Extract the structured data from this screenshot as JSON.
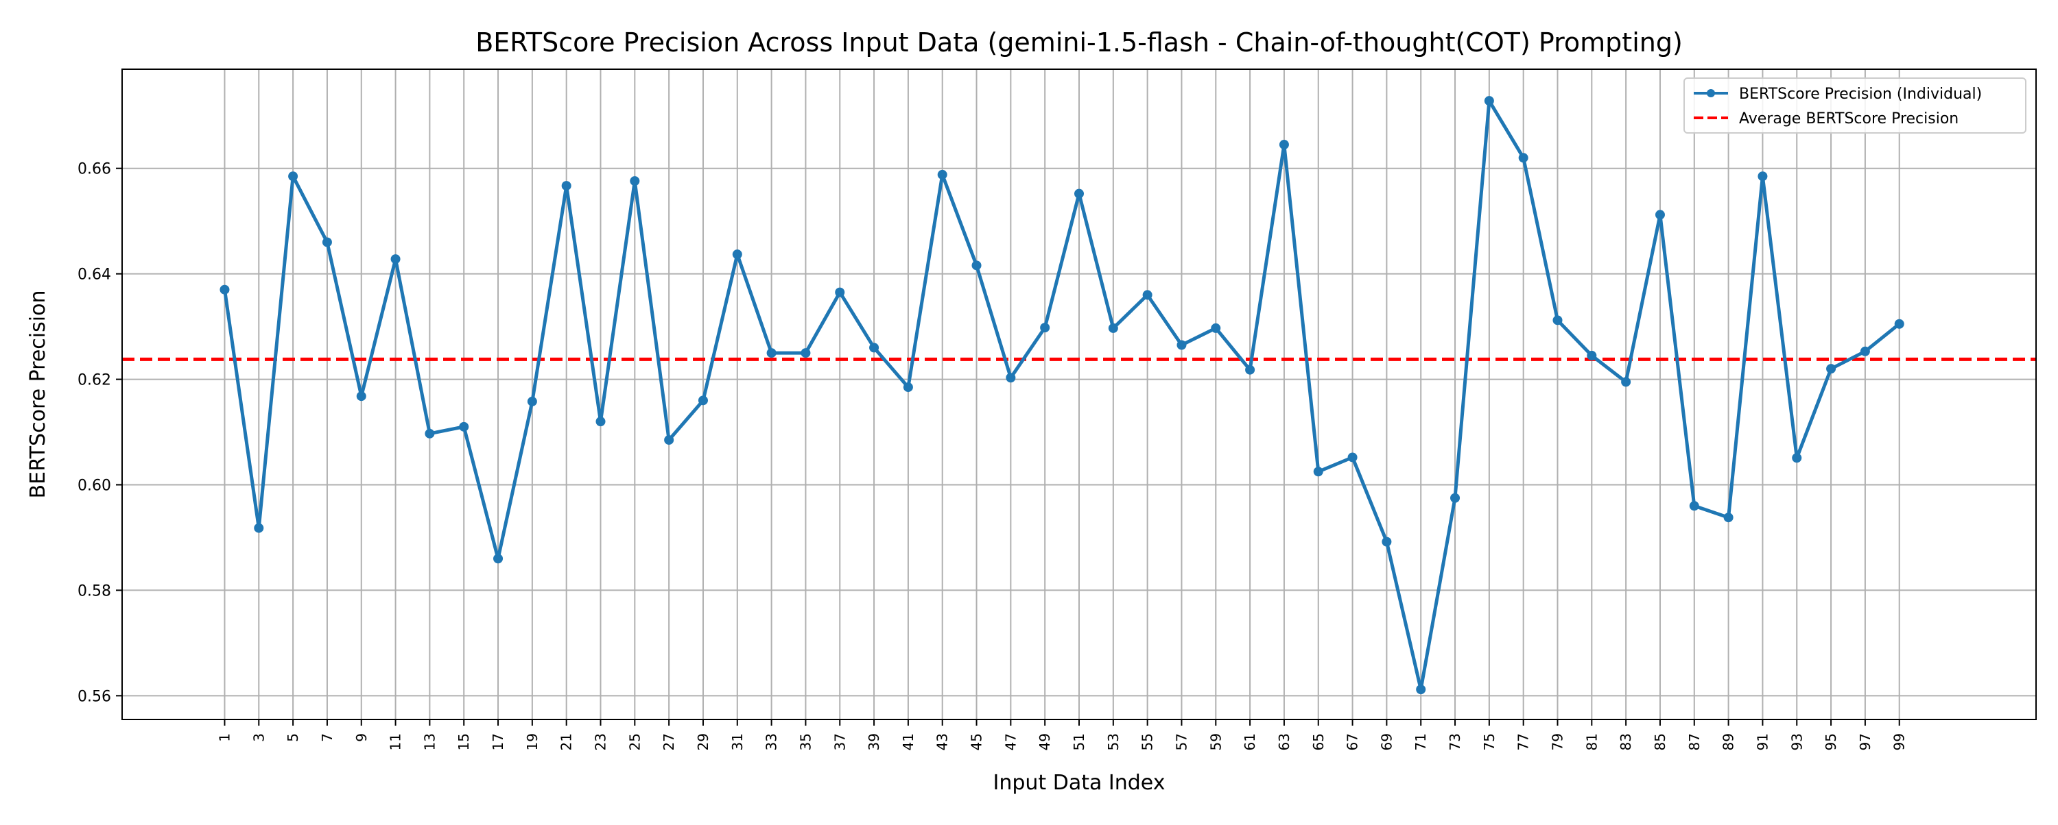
{
  "chart_data": {
    "type": "line",
    "title": "BERTScore Precision Across Input Data (gemini-1.5-flash - Chain-of-thought(COT) Prompting)",
    "xlabel": "Input Data Index",
    "ylabel": "BERTScore Precision",
    "x": [
      1,
      3,
      5,
      7,
      9,
      11,
      13,
      15,
      17,
      19,
      21,
      23,
      25,
      27,
      29,
      31,
      33,
      35,
      37,
      39,
      41,
      43,
      45,
      47,
      49,
      51,
      53,
      55,
      57,
      59,
      61,
      63,
      65,
      67,
      69,
      71,
      73,
      75,
      77,
      79,
      81,
      83,
      85,
      87,
      89,
      91,
      93,
      95,
      97,
      99
    ],
    "xlim": [
      -5,
      107
    ],
    "ylim": [
      0.5555,
      0.6788
    ],
    "yticks": [
      0.56,
      0.58,
      0.6,
      0.62,
      0.64,
      0.66
    ],
    "ytick_labels": [
      "0.56",
      "0.58",
      "0.60",
      "0.62",
      "0.64",
      "0.66"
    ],
    "xtick_labels": [
      "1",
      "3",
      "5",
      "7",
      "9",
      "11",
      "13",
      "15",
      "17",
      "19",
      "21",
      "23",
      "25",
      "27",
      "29",
      "31",
      "33",
      "35",
      "37",
      "39",
      "41",
      "43",
      "45",
      "47",
      "49",
      "51",
      "53",
      "55",
      "57",
      "59",
      "61",
      "63",
      "65",
      "67",
      "69",
      "71",
      "73",
      "75",
      "77",
      "79",
      "81",
      "83",
      "85",
      "87",
      "89",
      "91",
      "93",
      "95",
      "97",
      "99"
    ],
    "grid": true,
    "legend_position": "top-right",
    "series": [
      {
        "name": "BERTScore Precision (Individual)",
        "color": "#1f77b4",
        "style": "solid-marker",
        "values": [
          0.637,
          0.5918,
          0.6585,
          0.646,
          0.6168,
          0.6428,
          0.6097,
          0.611,
          0.586,
          0.6158,
          0.6567,
          0.612,
          0.6576,
          0.6085,
          0.616,
          0.6437,
          0.625,
          0.625,
          0.6365,
          0.626,
          0.6185,
          0.6588,
          0.6416,
          0.6203,
          0.6298,
          0.6552,
          0.6297,
          0.636,
          0.6265,
          0.6297,
          0.6218,
          0.6645,
          0.6025,
          0.6052,
          0.5892,
          0.5612,
          0.5975,
          0.6728,
          0.662,
          0.6312,
          0.6245,
          0.6195,
          0.6512,
          0.596,
          0.5938,
          0.6585,
          0.6051,
          0.622,
          0.6253,
          0.6305
        ]
      },
      {
        "name": "Average BERTScore Precision",
        "color": "#ff0000",
        "style": "dashed",
        "value": 0.6238
      }
    ]
  }
}
